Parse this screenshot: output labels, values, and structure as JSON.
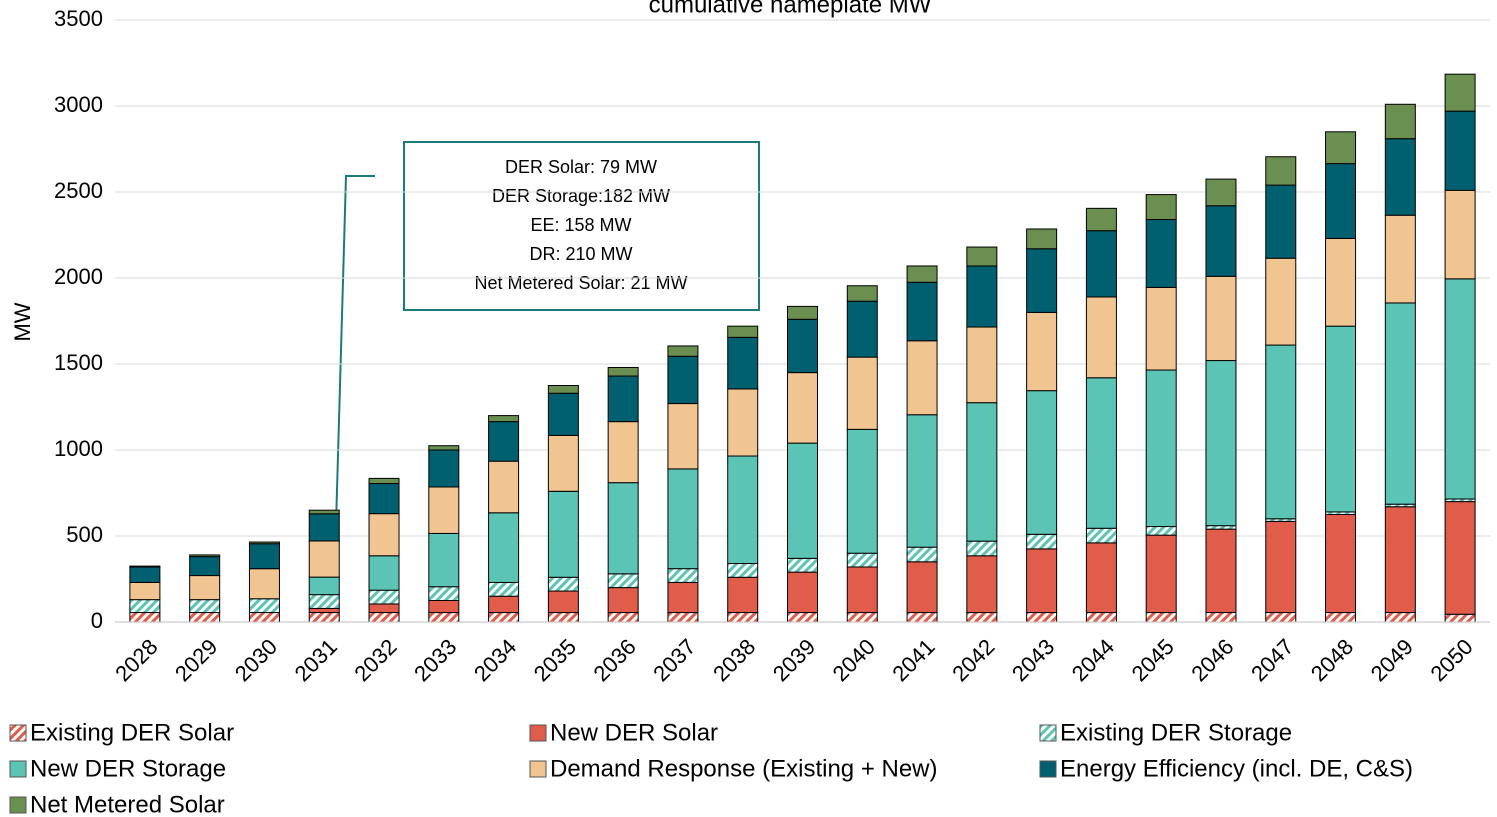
{
  "chart_data": {
    "type": "stacked_bar",
    "title": "cumulative nameplate MW",
    "ylabel": "MW",
    "categories": [
      "2028",
      "2029",
      "2030",
      "2031",
      "2032",
      "2033",
      "2034",
      "2035",
      "2036",
      "2037",
      "2038",
      "2039",
      "2040",
      "2041",
      "2042",
      "2043",
      "2044",
      "2045",
      "2046",
      "2047",
      "2048",
      "2049",
      "2050"
    ],
    "series": [
      {
        "name": "Existing DER Solar",
        "color": "#e05c4b",
        "pattern": "hatch",
        "values": [
          55,
          55,
          55,
          55,
          55,
          55,
          55,
          55,
          55,
          55,
          55,
          55,
          55,
          55,
          55,
          55,
          55,
          55,
          55,
          55,
          55,
          55,
          45
        ]
      },
      {
        "name": "New DER Solar",
        "color": "#e05c4b",
        "values": [
          0,
          0,
          0,
          24,
          50,
          70,
          95,
          125,
          145,
          175,
          205,
          235,
          265,
          295,
          330,
          370,
          405,
          450,
          485,
          530,
          570,
          615,
          655
        ]
      },
      {
        "name": "Existing DER Storage",
        "color": "#5bc4b5",
        "pattern": "hatch",
        "values": [
          75,
          75,
          80,
          80,
          80,
          80,
          80,
          80,
          80,
          80,
          80,
          80,
          80,
          85,
          85,
          85,
          85,
          50,
          20,
          15,
          15,
          15,
          15
        ]
      },
      {
        "name": "New DER Storage",
        "color": "#5bc4b5",
        "values": [
          0,
          0,
          0,
          102,
          200,
          310,
          405,
          500,
          530,
          580,
          625,
          670,
          720,
          770,
          805,
          835,
          875,
          910,
          960,
          1010,
          1080,
          1170,
          1280
        ]
      },
      {
        "name": "Demand Response (Existing + New)",
        "color": "#f0c591",
        "values": [
          100,
          140,
          175,
          210,
          245,
          270,
          300,
          325,
          355,
          380,
          390,
          410,
          420,
          430,
          440,
          455,
          470,
          480,
          490,
          505,
          510,
          510,
          515
        ]
      },
      {
        "name": "Energy Efficiency (incl. DE, C&S)",
        "color": "#006070",
        "values": [
          90,
          110,
          145,
          158,
          175,
          215,
          230,
          245,
          265,
          275,
          300,
          310,
          325,
          340,
          355,
          370,
          385,
          395,
          410,
          425,
          435,
          445,
          460
        ]
      },
      {
        "name": "Net Metered Solar",
        "color": "#6b8f50",
        "values": [
          5,
          10,
          10,
          21,
          30,
          25,
          35,
          45,
          50,
          60,
          65,
          75,
          90,
          95,
          110,
          115,
          130,
          145,
          155,
          165,
          185,
          200,
          215
        ]
      }
    ],
    "ylim": [
      0,
      3500
    ],
    "yticks": [
      0,
      500,
      1000,
      1500,
      2000,
      2500,
      3000,
      3500
    ],
    "grid": true,
    "legend": "bottom",
    "annotation": [
      "DER Solar: 79 MW",
      "DER Storage:182 MW",
      "EE: 158 MW",
      "DR: 210 MW",
      "Net Metered Solar: 21 MW"
    ]
  }
}
